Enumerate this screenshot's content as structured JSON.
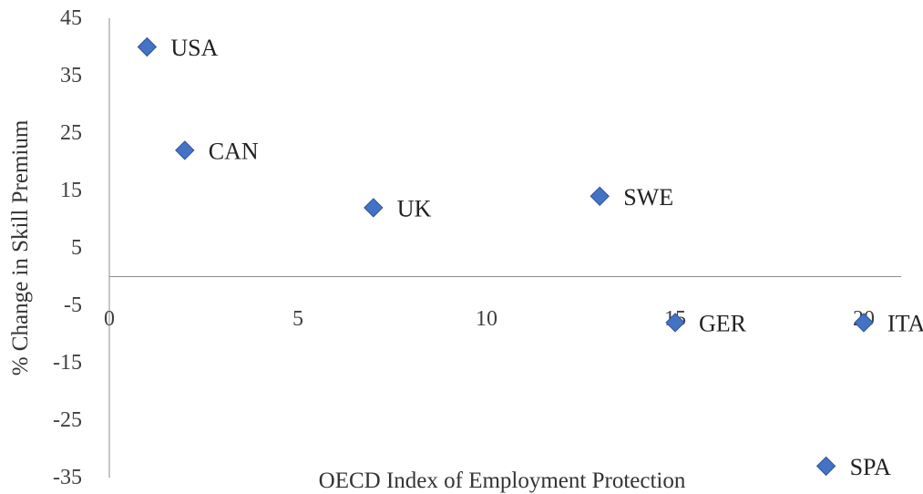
{
  "chart_data": {
    "type": "scatter",
    "xlabel": "OECD Index of Employment Protection",
    "ylabel": "% Change in Skill Premium",
    "xlim": [
      0,
      21
    ],
    "ylim": [
      -35,
      45
    ],
    "x_ticks": [
      "0",
      "5",
      "10",
      "15",
      "20"
    ],
    "y_ticks": [
      "45",
      "35",
      "25",
      "15",
      "5",
      "-5",
      "-15",
      "-25",
      "-35"
    ],
    "grid": false,
    "legend": "none",
    "marker": "diamond",
    "marker_color": "#4472c4",
    "points": [
      {
        "label": "USA",
        "x": 1,
        "y": 40
      },
      {
        "label": "CAN",
        "x": 2,
        "y": 22
      },
      {
        "label": "UK",
        "x": 7,
        "y": 12
      },
      {
        "label": "SWE",
        "x": 13,
        "y": 14
      },
      {
        "label": "GER",
        "x": 15,
        "y": -8
      },
      {
        "label": "ITA",
        "x": 20,
        "y": -8
      },
      {
        "label": "SPA",
        "x": 19,
        "y": -33
      }
    ]
  }
}
